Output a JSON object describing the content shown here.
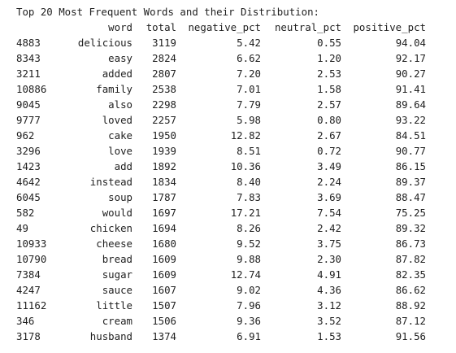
{
  "output": {
    "heading": "Top 20 Most Frequent Words and their Distribution:",
    "columns": [
      "",
      "word",
      "total",
      "negative_pct",
      "neutral_pct",
      "positive_pct"
    ],
    "rows": [
      [
        "4883",
        "delicious",
        "3119",
        "5.42",
        "0.55",
        "94.04"
      ],
      [
        "8343",
        "easy",
        "2824",
        "6.62",
        "1.20",
        "92.17"
      ],
      [
        "3211",
        "added",
        "2807",
        "7.20",
        "2.53",
        "90.27"
      ],
      [
        "10886",
        "family",
        "2538",
        "7.01",
        "1.58",
        "91.41"
      ],
      [
        "9045",
        "also",
        "2298",
        "7.79",
        "2.57",
        "89.64"
      ],
      [
        "9777",
        "loved",
        "2257",
        "5.98",
        "0.80",
        "93.22"
      ],
      [
        "962",
        "cake",
        "1950",
        "12.82",
        "2.67",
        "84.51"
      ],
      [
        "3296",
        "love",
        "1939",
        "8.51",
        "0.72",
        "90.77"
      ],
      [
        "1423",
        "add",
        "1892",
        "10.36",
        "3.49",
        "86.15"
      ],
      [
        "4642",
        "instead",
        "1834",
        "8.40",
        "2.24",
        "89.37"
      ],
      [
        "6045",
        "soup",
        "1787",
        "7.83",
        "3.69",
        "88.47"
      ],
      [
        "582",
        "would",
        "1697",
        "17.21",
        "7.54",
        "75.25"
      ],
      [
        "49",
        "chicken",
        "1694",
        "8.26",
        "2.42",
        "89.32"
      ],
      [
        "10933",
        "cheese",
        "1680",
        "9.52",
        "3.75",
        "86.73"
      ],
      [
        "10790",
        "bread",
        "1609",
        "9.88",
        "2.30",
        "87.82"
      ],
      [
        "7384",
        "sugar",
        "1609",
        "12.74",
        "4.91",
        "82.35"
      ],
      [
        "4247",
        "sauce",
        "1607",
        "9.02",
        "4.36",
        "86.62"
      ],
      [
        "11162",
        "little",
        "1507",
        "7.96",
        "3.12",
        "88.92"
      ],
      [
        "346",
        "cream",
        "1506",
        "9.36",
        "3.52",
        "87.12"
      ],
      [
        "3178",
        "husband",
        "1374",
        "6.91",
        "1.53",
        "91.56"
      ]
    ]
  }
}
